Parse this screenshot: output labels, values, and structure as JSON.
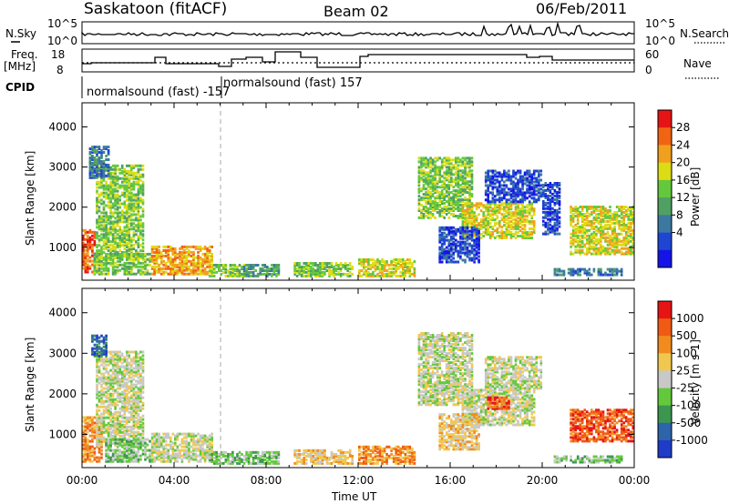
{
  "header": {
    "station": "Saskatoon (fitACF)",
    "beam": "Beam 02",
    "date": "06/Feb/2011"
  },
  "top_panels": {
    "nsky_label": "N.Sky",
    "freq_label_1": "Freq.",
    "freq_label_2": "[MHz]",
    "cpid_label": "CPID",
    "nsearch_label": "N.Search",
    "nave_label": "Nave",
    "nsky_ticks": [
      "10^5",
      "10^0"
    ],
    "nsearch_ticks": [
      "10^5",
      "10^0"
    ],
    "freq_ticks": [
      "18",
      "8"
    ],
    "nave_ticks": [
      "60",
      "0"
    ],
    "cpid_1": "normalsound (fast) -157",
    "cpid_2": "normalsound (fast) 157"
  },
  "chart_data": [
    {
      "type": "heatmap",
      "name": "power",
      "ylabel": "Slant Range [km]",
      "ylim": [
        180,
        4600
      ],
      "yticks": [
        "4000",
        "3000",
        "2000",
        "1000"
      ],
      "xlim": [
        0,
        24
      ],
      "colorbar_label": "Power [dB]",
      "colorbar_ticks": [
        "28",
        "24",
        "20",
        "16",
        "12",
        "8",
        "4"
      ],
      "colors": [
        "#1414e6",
        "#1e46d2",
        "#3c78a0",
        "#50a064",
        "#64c83c",
        "#dcdc14",
        "#f0a01e",
        "#f06414",
        "#e61414"
      ],
      "regions": [
        {
          "t0": 0.0,
          "t1": 0.6,
          "r0": 350,
          "r1": 1400,
          "level": 7
        },
        {
          "t0": 0.6,
          "t1": 2.7,
          "r0": 700,
          "r1": 3000,
          "level": 4
        },
        {
          "t0": 0.3,
          "t1": 1.2,
          "r0": 2700,
          "r1": 3500,
          "level": 2
        },
        {
          "t0": 0.5,
          "t1": 3.0,
          "r0": 300,
          "r1": 800,
          "level": 4
        },
        {
          "t0": 3.0,
          "t1": 5.6,
          "r0": 300,
          "r1": 1000,
          "level": 6
        },
        {
          "t0": 5.5,
          "t1": 7.0,
          "r0": 250,
          "r1": 550,
          "level": 4
        },
        {
          "t0": 7.0,
          "t1": 8.5,
          "r0": 250,
          "r1": 550,
          "level": 3
        },
        {
          "t0": 9.2,
          "t1": 11.7,
          "r0": 250,
          "r1": 600,
          "level": 4
        },
        {
          "t0": 12.0,
          "t1": 14.4,
          "r0": 250,
          "r1": 700,
          "level": 5
        },
        {
          "t0": 14.6,
          "t1": 17.0,
          "r0": 1700,
          "r1": 3200,
          "level": 4
        },
        {
          "t0": 16.5,
          "t1": 19.7,
          "r0": 1200,
          "r1": 2100,
          "level": 5
        },
        {
          "t0": 15.5,
          "t1": 17.3,
          "r0": 600,
          "r1": 1500,
          "level": 1
        },
        {
          "t0": 17.5,
          "t1": 20.0,
          "r0": 2100,
          "r1": 2900,
          "level": 1
        },
        {
          "t0": 20.0,
          "t1": 20.8,
          "r0": 1300,
          "r1": 2600,
          "level": 1
        },
        {
          "t0": 21.2,
          "t1": 24.0,
          "r0": 800,
          "r1": 2000,
          "level": 5
        },
        {
          "t0": 20.5,
          "t1": 23.5,
          "r0": 280,
          "r1": 450,
          "level": 2
        }
      ]
    },
    {
      "type": "heatmap",
      "name": "velocity",
      "ylabel": "Slant Range [km]",
      "ylim": [
        180,
        4600
      ],
      "yticks": [
        "4000",
        "3000",
        "2000",
        "1000"
      ],
      "xlim": [
        0,
        24
      ],
      "xlabel": "Time UT",
      "xticks": [
        "00:00",
        "04:00",
        "08:00",
        "12:00",
        "16:00",
        "20:00",
        "00:00"
      ],
      "colorbar_label": "Velocity [m s-1]",
      "colorbar_ticks": [
        "1000",
        "500",
        "100",
        "25",
        "-25",
        "-100",
        "-500",
        "-1000"
      ],
      "colors": [
        "#e61414",
        "#f05a14",
        "#f08c1e",
        "#f0c850",
        "#c8c8c8",
        "#64c83c",
        "#3c9650",
        "#2d64aa",
        "#1e3cc8"
      ],
      "regions": [
        {
          "t0": 0.0,
          "t1": 0.8,
          "r0": 300,
          "r1": 1400,
          "level": 2
        },
        {
          "t0": 0.6,
          "t1": 2.7,
          "r0": 700,
          "r1": 3000,
          "level": 4
        },
        {
          "t0": 0.4,
          "t1": 1.0,
          "r0": 2900,
          "r1": 3400,
          "level": 7
        },
        {
          "t0": 1.0,
          "t1": 3.0,
          "r0": 300,
          "r1": 850,
          "level": 5
        },
        {
          "t0": 3.0,
          "t1": 5.6,
          "r0": 300,
          "r1": 1000,
          "level": 4
        },
        {
          "t0": 5.5,
          "t1": 8.5,
          "r0": 250,
          "r1": 550,
          "level": 5
        },
        {
          "t0": 9.2,
          "t1": 11.7,
          "r0": 250,
          "r1": 600,
          "level": 3
        },
        {
          "t0": 12.0,
          "t1": 14.4,
          "r0": 250,
          "r1": 700,
          "level": 2
        },
        {
          "t0": 14.6,
          "t1": 17.0,
          "r0": 1700,
          "r1": 3500,
          "level": 4
        },
        {
          "t0": 16.5,
          "t1": 19.7,
          "r0": 1200,
          "r1": 2100,
          "level": 4
        },
        {
          "t0": 17.6,
          "t1": 18.6,
          "r0": 1600,
          "r1": 1900,
          "level": 1
        },
        {
          "t0": 15.5,
          "t1": 17.3,
          "r0": 600,
          "r1": 1500,
          "level": 3
        },
        {
          "t0": 17.5,
          "t1": 20.0,
          "r0": 2100,
          "r1": 2900,
          "level": 4
        },
        {
          "t0": 21.2,
          "t1": 24.0,
          "r0": 800,
          "r1": 1600,
          "level": 1
        },
        {
          "t0": 20.5,
          "t1": 23.5,
          "r0": 280,
          "r1": 450,
          "level": 5
        }
      ]
    }
  ]
}
